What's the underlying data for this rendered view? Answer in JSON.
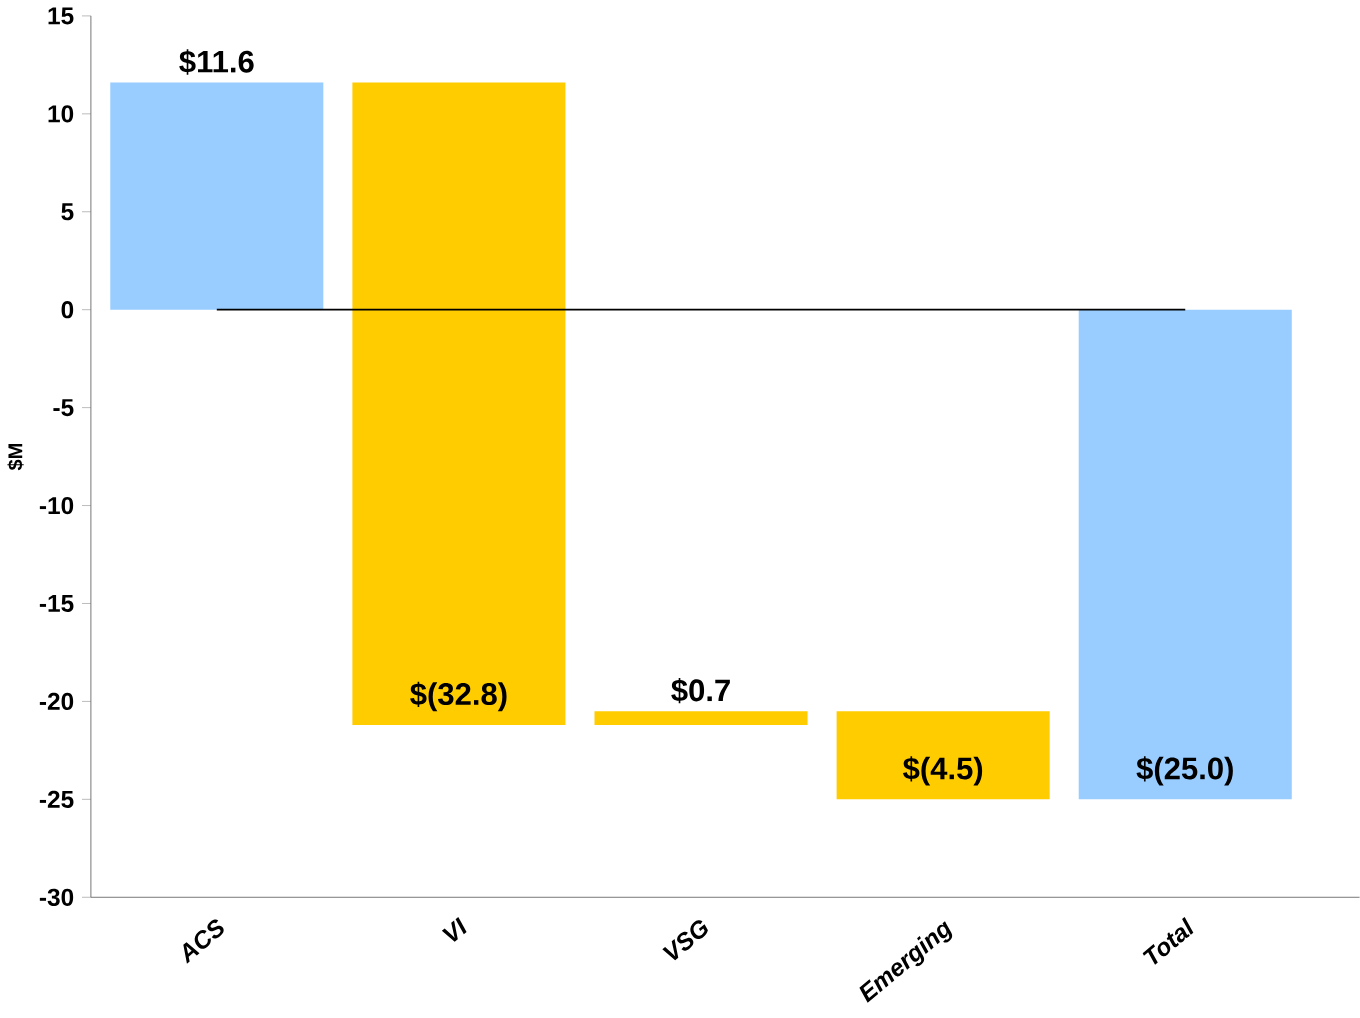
{
  "chart_data": {
    "type": "bar",
    "ylabel": "$M",
    "categories": [
      "ACS",
      "VI",
      "VSG",
      "Emerging",
      "Total"
    ],
    "base": [
      0,
      11.6,
      -21.2,
      -20.5,
      0
    ],
    "values": [
      11.6,
      -32.8,
      0.7,
      -4.5,
      -25.0
    ],
    "colors": [
      "#99ccff",
      "#ffcc00",
      "#ffcc00",
      "#ffcc00",
      "#99ccff"
    ],
    "value_labels": [
      "$11.6",
      "$(32.8)",
      "$0.7",
      "$(4.5)",
      "$(25.0)"
    ],
    "ylim": [
      -30,
      15
    ],
    "yticks": [
      -30,
      -25,
      -20,
      -15,
      -10,
      -5,
      0,
      5,
      10,
      15
    ],
    "ref_lines": [
      {
        "axis": "y",
        "value": 0,
        "color": "#000000"
      }
    ],
    "grid": false
  }
}
